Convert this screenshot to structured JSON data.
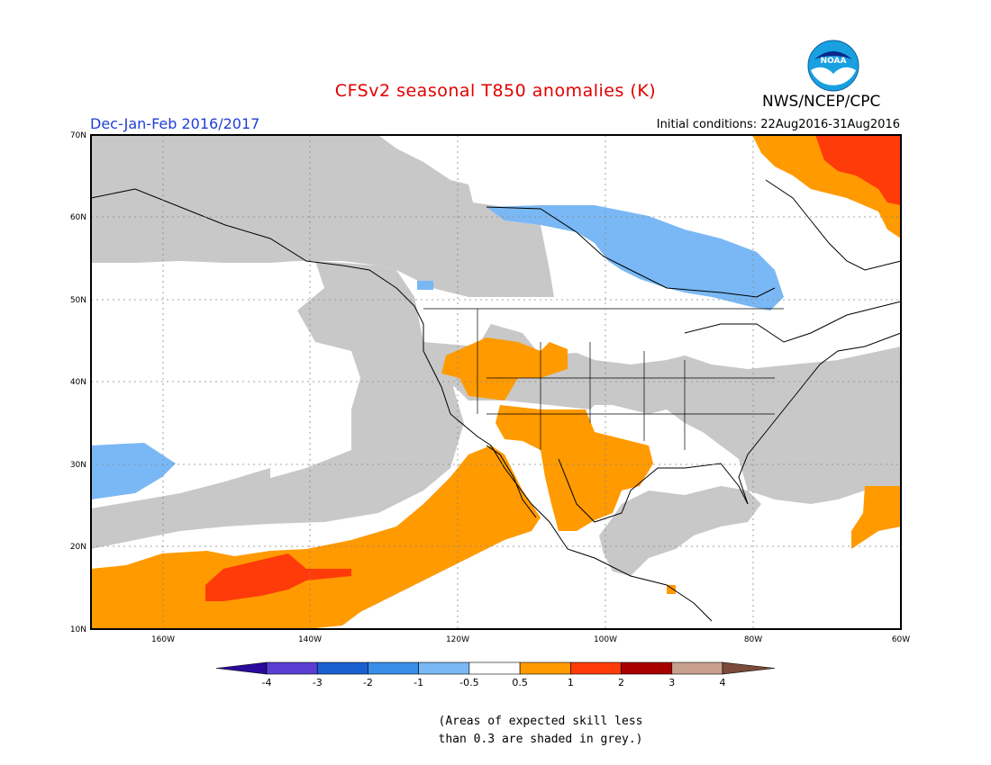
{
  "title": "CFSv2 seasonal T850 anomalies (K)",
  "agency": "NWS/NCEP/CPC",
  "logo_text": "NOAA",
  "period": "Dec-Jan-Feb 2016/2017",
  "initial_conditions": "Initial conditions: 22Aug2016-31Aug2016",
  "note": [
    "(Areas of expected skill less",
    "than 0.3 are shaded in grey.)"
  ],
  "lat_labels": [
    "70N",
    "60N",
    "50N",
    "40N",
    "30N",
    "20N",
    "10N"
  ],
  "lon_labels": [
    "160W",
    "140W",
    "120W",
    "100W",
    "80W",
    "60W"
  ],
  "colorbar": {
    "labels": [
      "-4",
      "-3",
      "-2",
      "-1",
      "-0.5",
      "0.5",
      "1",
      "2",
      "3",
      "4"
    ],
    "colors": [
      "#2a0a9a",
      "#5a3ed2",
      "#1a60d0",
      "#3a8ee8",
      "#79b8f4",
      "#ffffff",
      "#ff9a00",
      "#ff3b0a",
      "#a80000",
      "#c9a08e",
      "#7a4a3a"
    ]
  },
  "colors": {
    "grey": "#c8c8c8",
    "orange": "#ff9a00",
    "red": "#ff3b0a",
    "light_blue": "#79b8f4",
    "title": "#e00000",
    "period": "#1f3fd6"
  }
}
